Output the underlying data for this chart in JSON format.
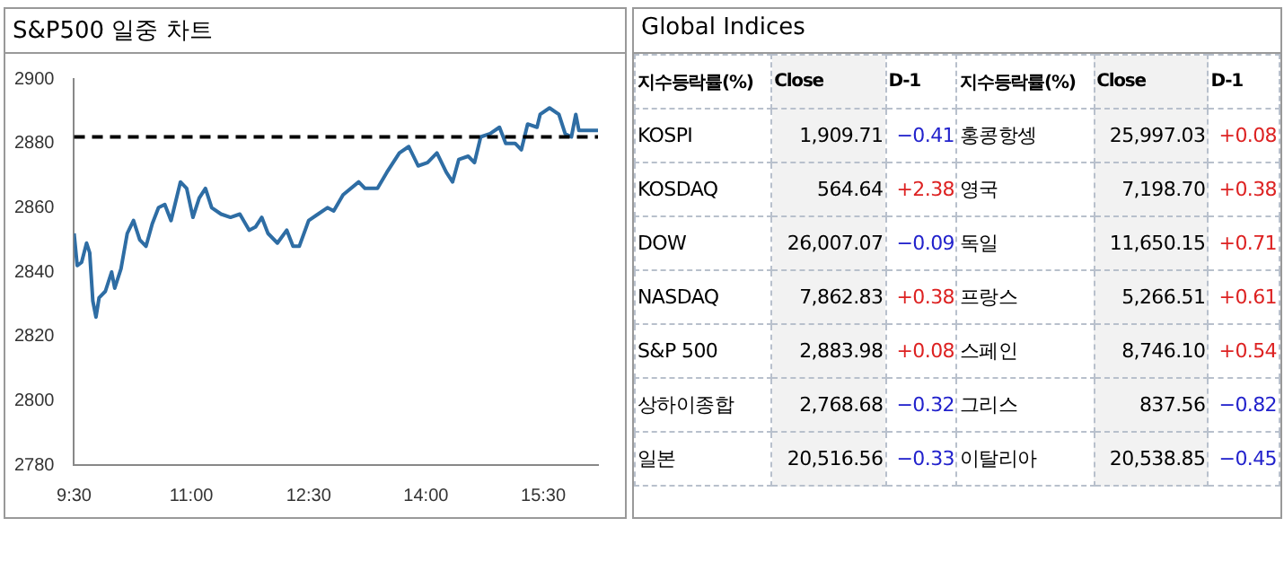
{
  "chart_data": [
    {
      "type": "line",
      "title": "S&P500 일중 차트",
      "x": [
        9.5,
        9.54,
        9.596,
        9.66,
        9.7,
        9.74,
        9.78,
        9.82,
        9.9,
        9.98,
        10.02,
        10.1,
        10.18,
        10.26,
        10.34,
        10.42,
        10.5,
        10.58,
        10.66,
        10.74,
        10.86,
        10.94,
        11.02,
        11.1,
        11.18,
        11.26,
        11.38,
        11.5,
        11.62,
        11.74,
        11.82,
        11.9,
        11.98,
        12.1,
        12.22,
        12.3,
        12.38,
        12.5,
        12.62,
        12.74,
        12.82,
        12.94,
        13.14,
        13.22,
        13.38,
        13.5,
        13.66,
        13.78,
        13.9,
        14.02,
        14.14,
        14.26,
        14.34,
        14.42,
        14.54,
        14.62,
        14.7,
        14.82,
        14.94,
        15.02,
        15.14,
        15.22,
        15.3,
        15.42,
        15.46,
        15.58,
        15.7,
        15.78,
        15.86,
        15.916,
        15.956,
        16.2
      ],
      "series": [
        {
          "color": "#2e6da4",
          "values": [
            2852,
            2842,
            2843,
            2849,
            2846,
            2831,
            2826,
            2832,
            2834,
            2840,
            2835,
            2841,
            2852,
            2856,
            2850,
            2848,
            2855,
            2860,
            2861,
            2856,
            2868,
            2866,
            2857,
            2863,
            2866,
            2860,
            2858,
            2857,
            2858,
            2853,
            2854,
            2857,
            2852,
            2849,
            2853,
            2848,
            2848,
            2856,
            2858,
            2860,
            2859,
            2864,
            2868,
            2866,
            2866,
            2871,
            2877,
            2879,
            2873,
            2874,
            2877,
            2871,
            2868,
            2875,
            2876,
            2874,
            2882,
            2883,
            2885,
            2880,
            2880,
            2878,
            2886,
            2885,
            2889,
            2891,
            2889,
            2883,
            2882,
            2889,
            2884,
            2884
          ]
        }
      ],
      "xlim": [
        9.5,
        16.2
      ],
      "xticks": [
        {
          "value": 9.5,
          "label": "9:30"
        },
        {
          "value": 11,
          "label": "11:00"
        },
        {
          "value": 12.5,
          "label": "12:30"
        },
        {
          "value": 14,
          "label": "14:00"
        },
        {
          "value": 15.5,
          "label": "15:30"
        }
      ],
      "ylim": [
        2780,
        2900
      ],
      "yticks": [
        2780,
        2800,
        2820,
        2840,
        2860,
        2880,
        2900
      ],
      "grid": false,
      "marker": "none",
      "line_style": "solid",
      "ref_lines": [
        {
          "axis": "y",
          "value": 2882,
          "color": "#000000",
          "line_style": "dashed"
        }
      ]
    },
    {
      "type": "other",
      "title": "Global Indices",
      "annotations": [
        "지수등락률(%)",
        "Close",
        "D-1",
        "지수등락률(%)",
        "Close",
        "D-1",
        "KOSPI",
        "1,909.71",
        "−0.41",
        "홍콩항셍",
        "25,997.03",
        "+0.08",
        "KOSDAQ",
        "564.64",
        "+2.38",
        "영국",
        "7,198.70",
        "+0.38",
        "DOW",
        "26,007.07",
        "−0.09",
        "독일",
        "11,650.15",
        "+0.71",
        "NASDAQ",
        "7,862.83",
        "+0.38",
        "프랑스",
        "5,266.51",
        "+0.61",
        "S&P 500",
        "2,883.98",
        "+0.08",
        "스페인",
        "8,746.10",
        "+0.54",
        "상하이종합",
        "2,768.68",
        "−0.32",
        "그리스",
        "837.56",
        "−0.82",
        "일본",
        "20,516.56",
        "−0.33",
        "이탈리아",
        "20,538.85",
        "−0.45"
      ]
    }
  ]
}
